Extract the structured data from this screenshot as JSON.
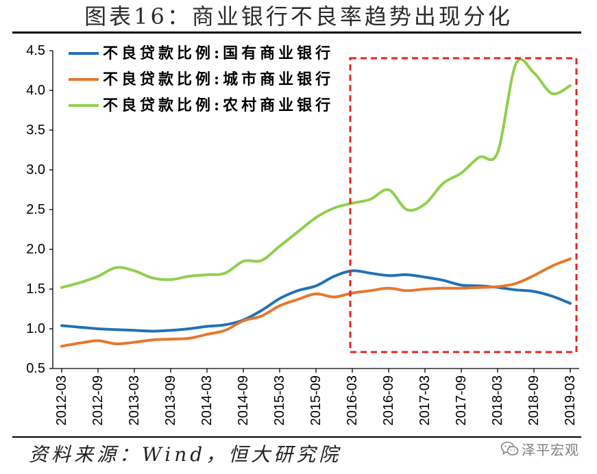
{
  "chart_data": {
    "type": "line",
    "title": "图表16：商业银行不良率趋势出现分化",
    "ylim": [
      0.5,
      4.5
    ],
    "yticks": [
      "0.5",
      "1.0",
      "1.5",
      "2.0",
      "2.5",
      "3.0",
      "3.5",
      "4.0",
      "4.5"
    ],
    "xticks": [
      "2012-03",
      "2012-09",
      "2013-03",
      "2013-09",
      "2014-03",
      "2014-09",
      "2015-03",
      "2015-09",
      "2016-03",
      "2016-09",
      "2017-03",
      "2017-09",
      "2018-03",
      "2018-09",
      "2019-03"
    ],
    "x": [
      "2012-03",
      "2012-06",
      "2012-09",
      "2012-12",
      "2013-03",
      "2013-06",
      "2013-09",
      "2013-12",
      "2014-03",
      "2014-06",
      "2014-09",
      "2014-12",
      "2015-03",
      "2015-06",
      "2015-09",
      "2015-12",
      "2016-03",
      "2016-06",
      "2016-09",
      "2016-12",
      "2017-03",
      "2017-06",
      "2017-09",
      "2017-12",
      "2018-03",
      "2018-06",
      "2018-09",
      "2018-12",
      "2019-03"
    ],
    "grid": false,
    "legend": "top-left",
    "series": [
      {
        "name": "不良贷款比例:国有商业银行",
        "color": "#2171B6",
        "values": [
          1.04,
          1.02,
          1.0,
          0.99,
          0.98,
          0.97,
          0.98,
          1.0,
          1.03,
          1.05,
          1.11,
          1.23,
          1.38,
          1.48,
          1.54,
          1.66,
          1.73,
          1.7,
          1.67,
          1.68,
          1.65,
          1.61,
          1.55,
          1.54,
          1.52,
          1.49,
          1.47,
          1.41,
          1.32
        ]
      },
      {
        "name": "不良贷款比例:城市商业银行",
        "color": "#E6772B",
        "values": [
          0.78,
          0.82,
          0.85,
          0.81,
          0.83,
          0.86,
          0.87,
          0.88,
          0.93,
          0.98,
          1.1,
          1.16,
          1.29,
          1.37,
          1.44,
          1.4,
          1.45,
          1.48,
          1.51,
          1.48,
          1.5,
          1.51,
          1.51,
          1.52,
          1.53,
          1.57,
          1.67,
          1.79,
          1.88
        ]
      },
      {
        "name": "不良贷款比例:农村商业银行",
        "color": "#90CF4E",
        "values": [
          1.52,
          1.58,
          1.66,
          1.77,
          1.73,
          1.64,
          1.62,
          1.66,
          1.68,
          1.7,
          1.85,
          1.86,
          2.04,
          2.22,
          2.4,
          2.52,
          2.58,
          2.63,
          2.75,
          2.5,
          2.57,
          2.83,
          2.96,
          3.16,
          3.22,
          4.33,
          4.22,
          3.96,
          4.06
        ]
      }
    ]
  },
  "source": "资料来源：Wind，恒大研究院",
  "watermark": {
    "icon": "wechat-icon",
    "text": "泽平宏观"
  },
  "colors": {
    "rule": "#000000",
    "highlight_box": "#E0261F",
    "watermark": "#7f7f7f"
  }
}
